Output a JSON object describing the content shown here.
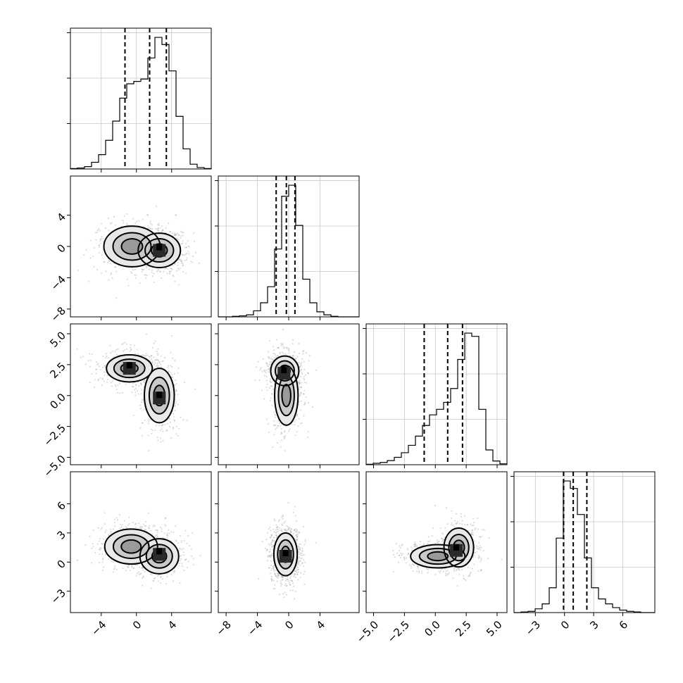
{
  "chart_data": {
    "type": "corner",
    "parameters": 4,
    "title": "",
    "axes": [
      {
        "index": 0,
        "range": [
          -7.5,
          8.5
        ],
        "ticks": [
          -4,
          0,
          4
        ],
        "tick_labels": [
          "−4",
          "0",
          "4"
        ]
      },
      {
        "index": 1,
        "range": [
          -9,
          9
        ],
        "ticks": [
          -8,
          -4,
          0,
          4
        ],
        "tick_labels": [
          "−8",
          "−4",
          "0",
          "4"
        ]
      },
      {
        "index": 2,
        "range": [
          -5.6,
          5.8
        ],
        "ticks": [
          -5,
          -2.5,
          0,
          2.5,
          5
        ],
        "tick_labels": [
          "−5.0",
          "−2.5",
          "0.0",
          "2.5",
          "5.0"
        ]
      },
      {
        "index": 3,
        "range": [
          -5.2,
          9.3
        ],
        "ticks": [
          -3,
          0,
          3,
          6
        ],
        "tick_labels": [
          "−3",
          "0",
          "3",
          "6"
        ]
      }
    ],
    "histograms": [
      {
        "param": 0,
        "quantiles": [
          -1.3,
          1.5,
          3.4
        ],
        "bin_start": -7.5,
        "bin_width": 0.8,
        "counts": [
          1,
          2,
          5,
          14,
          30,
          60,
          100,
          148,
          178,
          183,
          188,
          232,
          275,
          260,
          205,
          110,
          42,
          10,
          3,
          1
        ]
      },
      {
        "param": 1,
        "quantiles": [
          -1.6,
          -0.3,
          0.8
        ],
        "bin_start": -9,
        "bin_width": 0.9,
        "counts": [
          0,
          0,
          1,
          2,
          4,
          12,
          28,
          60,
          135,
          240,
          262,
          182,
          75,
          28,
          10,
          4,
          1,
          0,
          0,
          0
        ]
      },
      {
        "param": 2,
        "quantiles": [
          -0.9,
          1.0,
          2.2
        ],
        "bin_start": -5.6,
        "bin_width": 0.57,
        "counts": [
          1,
          3,
          5,
          9,
          16,
          26,
          42,
          62,
          85,
          108,
          120,
          135,
          165,
          228,
          285,
          278,
          120,
          32,
          8,
          2
        ]
      },
      {
        "param": 3,
        "quantiles": [
          -0.1,
          0.9,
          2.3
        ],
        "bin_start": -5.2,
        "bin_width": 0.725,
        "counts": [
          0,
          1,
          2,
          6,
          14,
          40,
          120,
          212,
          200,
          158,
          88,
          40,
          22,
          14,
          8,
          4,
          2,
          1,
          0,
          0
        ]
      }
    ],
    "scatter_panels": [
      {
        "x_param": 0,
        "y_param": 1,
        "clusters": [
          {
            "mx": -0.5,
            "my": 0.0,
            "sx": 1.6,
            "sy": 1.3,
            "w": 0.45
          },
          {
            "mx": 2.6,
            "my": -0.5,
            "sx": 1.2,
            "sy": 1.1,
            "w": 0.55
          }
        ],
        "modes": [
          {
            "x": 2.6,
            "y": -0.5
          }
        ]
      },
      {
        "x_param": 0,
        "y_param": 2,
        "clusters": [
          {
            "mx": -0.8,
            "my": 2.2,
            "sx": 1.3,
            "sy": 0.55,
            "w": 0.5
          },
          {
            "mx": 2.6,
            "my": 0.0,
            "sx": 0.85,
            "sy": 1.1,
            "w": 0.5
          }
        ],
        "modes": [
          {
            "x": -0.8,
            "y": 2.2
          },
          {
            "x": 2.6,
            "y": -0.2
          }
        ]
      },
      {
        "x_param": 1,
        "y_param": 2,
        "clusters": [
          {
            "mx": -0.5,
            "my": 2.0,
            "sx": 0.9,
            "sy": 0.6,
            "w": 0.5
          },
          {
            "mx": -0.3,
            "my": 0.0,
            "sx": 0.75,
            "sy": 1.2,
            "w": 0.5
          }
        ],
        "modes": [
          {
            "x": -0.6,
            "y": 1.8
          }
        ]
      },
      {
        "x_param": 0,
        "y_param": 3,
        "clusters": [
          {
            "mx": -0.6,
            "my": 1.6,
            "sx": 1.5,
            "sy": 0.9,
            "w": 0.45
          },
          {
            "mx": 2.6,
            "my": 0.6,
            "sx": 1.1,
            "sy": 0.9,
            "w": 0.55
          }
        ],
        "modes": [
          {
            "x": 2.6,
            "y": 0.8
          }
        ]
      },
      {
        "x_param": 1,
        "y_param": 3,
        "clusters": [
          {
            "mx": -0.4,
            "my": 0.8,
            "sx": 0.75,
            "sy": 1.1,
            "w": 1.0
          }
        ],
        "modes": [
          {
            "x": -0.4,
            "y": 0.6
          }
        ]
      },
      {
        "x_param": 2,
        "y_param": 3,
        "clusters": [
          {
            "mx": 0.2,
            "my": 0.6,
            "sx": 1.1,
            "sy": 0.6,
            "w": 0.5
          },
          {
            "mx": 1.9,
            "my": 1.5,
            "sx": 0.6,
            "sy": 1.0,
            "w": 0.5
          }
        ],
        "modes": [
          {
            "x": 1.7,
            "y": 1.2
          }
        ]
      }
    ]
  }
}
